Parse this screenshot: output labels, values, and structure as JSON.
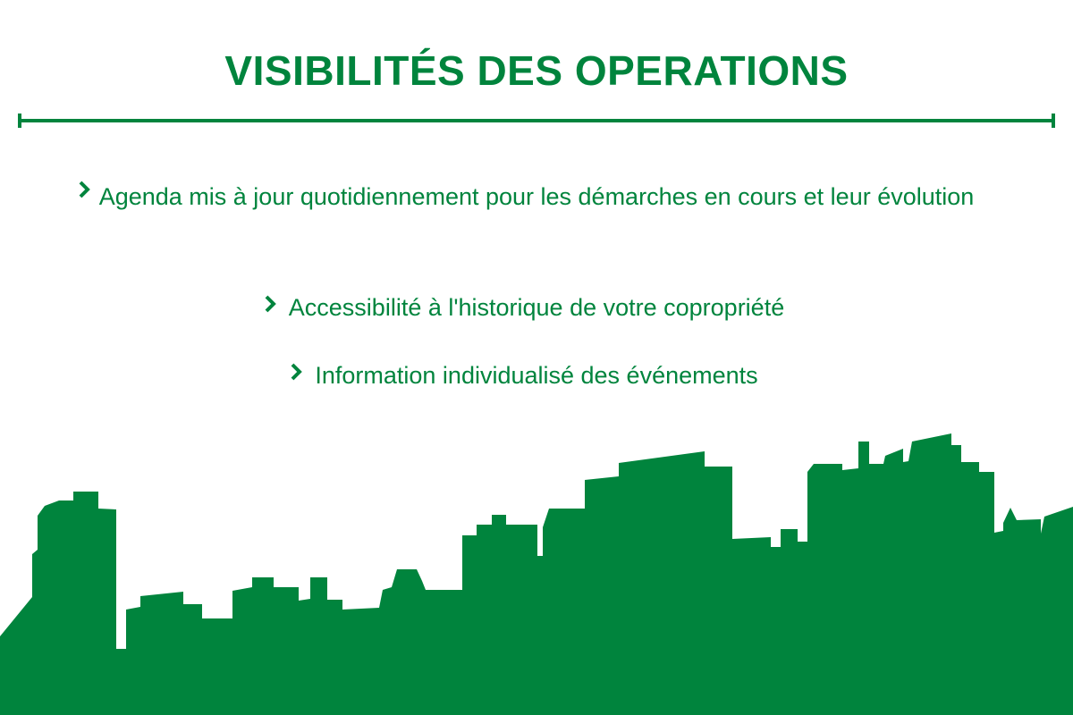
{
  "title": "VISIBILITÉS DES OPERATIONS",
  "features": [
    {
      "label": "Agenda mis à jour quotidiennement pour les démarches en cours et leur évolution",
      "icon": "chevron-right-icon"
    },
    {
      "label": "Accessibilité à l'historique de votre copropriété",
      "icon": "chevron-right-icon"
    },
    {
      "label": "Information individualisé des événements",
      "icon": "chevron-right-icon"
    }
  ],
  "colors": {
    "accent": "#00843d",
    "background": "#ffffff"
  },
  "decoration": {
    "skyline": "city-skyline-silhouette"
  }
}
